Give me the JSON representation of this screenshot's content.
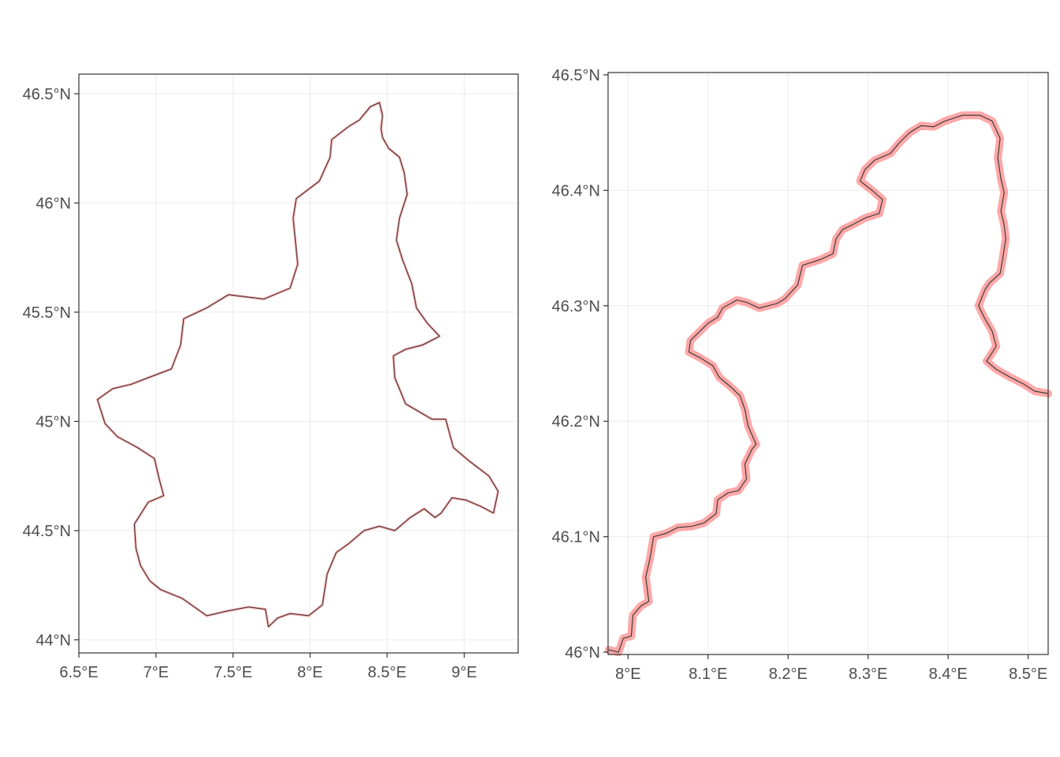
{
  "colors": {
    "highlight": "#ff9999",
    "outline": "#333333",
    "grid": "#ebebeb"
  },
  "maps": [
    {
      "id": "overview",
      "x_ticks": [
        {
          "v": 6.5,
          "label": "6.5°E"
        },
        {
          "v": 7.0,
          "label": "7°E"
        },
        {
          "v": 7.5,
          "label": "7.5°E"
        },
        {
          "v": 8.0,
          "label": "8°E"
        },
        {
          "v": 8.5,
          "label": "8.5°E"
        },
        {
          "v": 9.0,
          "label": "9°E"
        }
      ],
      "y_ticks": [
        {
          "v": 44.0,
          "label": "44°N"
        },
        {
          "v": 44.5,
          "label": "44.5°N"
        },
        {
          "v": 45.0,
          "label": "45°N"
        },
        {
          "v": 45.5,
          "label": "45.5°N"
        },
        {
          "v": 46.0,
          "label": "46°N"
        },
        {
          "v": 46.5,
          "label": "46.5°N"
        }
      ],
      "xlim": [
        6.5,
        9.35
      ],
      "ylim": [
        43.94,
        46.59
      ],
      "boundary": [
        [
          8.45,
          46.46
        ],
        [
          8.47,
          46.4
        ],
        [
          8.46,
          46.34
        ],
        [
          8.47,
          46.3
        ],
        [
          8.51,
          46.25
        ],
        [
          8.58,
          46.21
        ],
        [
          8.61,
          46.14
        ],
        [
          8.63,
          46.04
        ],
        [
          8.58,
          45.93
        ],
        [
          8.56,
          45.83
        ],
        [
          8.6,
          45.74
        ],
        [
          8.66,
          45.63
        ],
        [
          8.69,
          45.52
        ],
        [
          8.76,
          45.45
        ],
        [
          8.84,
          45.39
        ],
        [
          8.73,
          45.35
        ],
        [
          8.62,
          45.33
        ],
        [
          8.54,
          45.3
        ],
        [
          8.55,
          45.2
        ],
        [
          8.62,
          45.08
        ],
        [
          8.79,
          45.01
        ],
        [
          8.88,
          45.01
        ],
        [
          8.93,
          44.88
        ],
        [
          9.03,
          44.82
        ],
        [
          9.16,
          44.75
        ],
        [
          9.22,
          44.68
        ],
        [
          9.19,
          44.58
        ],
        [
          9.11,
          44.61
        ],
        [
          9.01,
          44.64
        ],
        [
          8.92,
          44.65
        ],
        [
          8.85,
          44.58
        ],
        [
          8.81,
          44.56
        ],
        [
          8.74,
          44.6
        ],
        [
          8.65,
          44.56
        ],
        [
          8.55,
          44.5
        ],
        [
          8.45,
          44.52
        ],
        [
          8.35,
          44.5
        ],
        [
          8.25,
          44.44
        ],
        [
          8.17,
          44.4
        ],
        [
          8.11,
          44.3
        ],
        [
          8.08,
          44.16
        ],
        [
          7.99,
          44.11
        ],
        [
          7.87,
          44.12
        ],
        [
          7.79,
          44.1
        ],
        [
          7.73,
          44.06
        ],
        [
          7.71,
          44.14
        ],
        [
          7.6,
          44.15
        ],
        [
          7.45,
          44.13
        ],
        [
          7.33,
          44.11
        ],
        [
          7.17,
          44.19
        ],
        [
          7.03,
          44.23
        ],
        [
          6.96,
          44.27
        ],
        [
          6.9,
          44.34
        ],
        [
          6.87,
          44.42
        ],
        [
          6.86,
          44.53
        ],
        [
          6.95,
          44.63
        ],
        [
          7.05,
          44.66
        ],
        [
          7.02,
          44.74
        ],
        [
          6.99,
          44.83
        ],
        [
          6.88,
          44.88
        ],
        [
          6.75,
          44.93
        ],
        [
          6.67,
          44.99
        ],
        [
          6.62,
          45.1
        ],
        [
          6.72,
          45.15
        ],
        [
          6.84,
          45.17
        ],
        [
          6.95,
          45.2
        ],
        [
          7.1,
          45.24
        ],
        [
          7.16,
          45.35
        ],
        [
          7.18,
          45.47
        ],
        [
          7.33,
          45.52
        ],
        [
          7.47,
          45.58
        ],
        [
          7.7,
          45.56
        ],
        [
          7.87,
          45.61
        ],
        [
          7.92,
          45.72
        ],
        [
          7.89,
          45.93
        ],
        [
          7.91,
          46.02
        ],
        [
          8.06,
          46.1
        ],
        [
          8.13,
          46.21
        ],
        [
          8.14,
          46.29
        ],
        [
          8.25,
          46.35
        ],
        [
          8.32,
          46.38
        ],
        [
          8.39,
          46.44
        ],
        [
          8.45,
          46.46
        ]
      ]
    },
    {
      "id": "detail",
      "x_ticks": [
        {
          "v": 8.0,
          "label": "8°E"
        },
        {
          "v": 8.1,
          "label": "8.1°E"
        },
        {
          "v": 8.2,
          "label": "8.2°E"
        },
        {
          "v": 8.3,
          "label": "8.3°E"
        },
        {
          "v": 8.4,
          "label": "8.4°E"
        },
        {
          "v": 8.5,
          "label": "8.5°E"
        }
      ],
      "y_ticks": [
        {
          "v": 46.0,
          "label": "46°N"
        },
        {
          "v": 46.1,
          "label": "46.1°N"
        },
        {
          "v": 46.2,
          "label": "46.2°N"
        },
        {
          "v": 46.3,
          "label": "46.3°N"
        },
        {
          "v": 46.4,
          "label": "46.4°N"
        },
        {
          "v": 46.5,
          "label": "46.5°N"
        }
      ],
      "xlim": [
        7.975,
        8.525
      ],
      "ylim": [
        45.998,
        46.502
      ],
      "boundary": [
        [
          7.976,
          46.002
        ],
        [
          7.988,
          46.0
        ],
        [
          7.994,
          46.012
        ],
        [
          8.004,
          46.014
        ],
        [
          8.006,
          46.032
        ],
        [
          8.016,
          46.04
        ],
        [
          8.026,
          46.044
        ],
        [
          8.022,
          46.065
        ],
        [
          8.027,
          46.08
        ],
        [
          8.032,
          46.1
        ],
        [
          8.048,
          46.103
        ],
        [
          8.062,
          46.108
        ],
        [
          8.08,
          46.109
        ],
        [
          8.095,
          46.112
        ],
        [
          8.11,
          46.12
        ],
        [
          8.112,
          46.132
        ],
        [
          8.125,
          46.138
        ],
        [
          8.138,
          46.14
        ],
        [
          8.148,
          46.15
        ],
        [
          8.146,
          46.163
        ],
        [
          8.155,
          46.176
        ],
        [
          8.16,
          46.18
        ],
        [
          8.15,
          46.196
        ],
        [
          8.146,
          46.21
        ],
        [
          8.14,
          46.222
        ],
        [
          8.128,
          46.23
        ],
        [
          8.114,
          46.238
        ],
        [
          8.106,
          46.248
        ],
        [
          8.09,
          46.255
        ],
        [
          8.076,
          46.26
        ],
        [
          8.078,
          46.27
        ],
        [
          8.09,
          46.278
        ],
        [
          8.1,
          46.285
        ],
        [
          8.112,
          46.29
        ],
        [
          8.118,
          46.298
        ],
        [
          8.136,
          46.305
        ],
        [
          8.148,
          46.303
        ],
        [
          8.164,
          46.298
        ],
        [
          8.186,
          46.302
        ],
        [
          8.196,
          46.306
        ],
        [
          8.212,
          46.318
        ],
        [
          8.218,
          46.335
        ],
        [
          8.24,
          46.34
        ],
        [
          8.256,
          46.345
        ],
        [
          8.26,
          46.358
        ],
        [
          8.268,
          46.366
        ],
        [
          8.28,
          46.37
        ],
        [
          8.296,
          46.376
        ],
        [
          8.314,
          46.38
        ],
        [
          8.318,
          46.392
        ],
        [
          8.305,
          46.4
        ],
        [
          8.29,
          46.408
        ],
        [
          8.296,
          46.418
        ],
        [
          8.308,
          46.426
        ],
        [
          8.328,
          46.432
        ],
        [
          8.34,
          46.442
        ],
        [
          8.352,
          46.45
        ],
        [
          8.366,
          46.456
        ],
        [
          8.382,
          46.455
        ],
        [
          8.396,
          46.46
        ],
        [
          8.418,
          46.465
        ],
        [
          8.44,
          46.465
        ],
        [
          8.455,
          46.46
        ],
        [
          8.465,
          46.445
        ],
        [
          8.462,
          46.428
        ],
        [
          8.466,
          46.41
        ],
        [
          8.47,
          46.398
        ],
        [
          8.466,
          46.382
        ],
        [
          8.47,
          46.37
        ],
        [
          8.472,
          46.358
        ],
        [
          8.468,
          46.34
        ],
        [
          8.465,
          46.328
        ],
        [
          8.452,
          46.32
        ],
        [
          8.446,
          46.314
        ],
        [
          8.438,
          46.3
        ],
        [
          8.445,
          46.29
        ],
        [
          8.455,
          46.278
        ],
        [
          8.46,
          46.265
        ],
        [
          8.452,
          46.256
        ],
        [
          8.448,
          46.252
        ],
        [
          8.46,
          46.245
        ],
        [
          8.478,
          46.238
        ],
        [
          8.495,
          46.232
        ],
        [
          8.508,
          46.226
        ],
        [
          8.525,
          46.224
        ]
      ]
    }
  ]
}
